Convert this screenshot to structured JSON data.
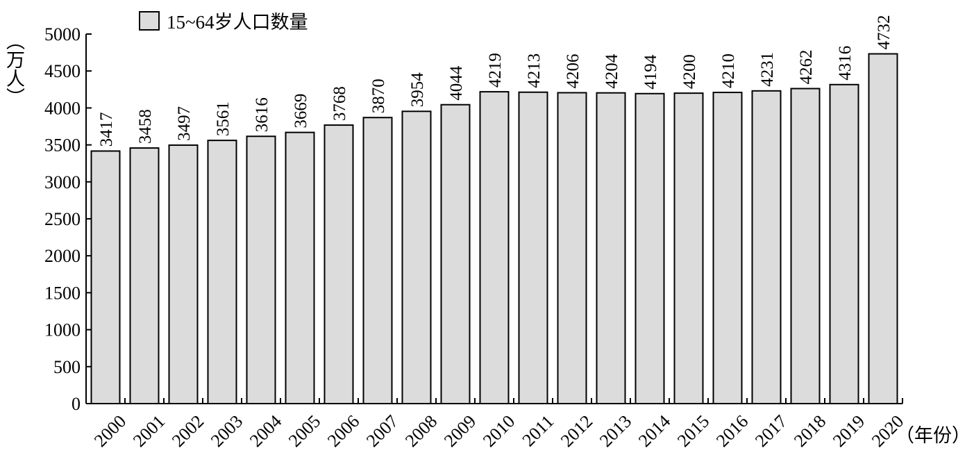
{
  "chart_data": {
    "type": "bar",
    "categories": [
      "2000",
      "2001",
      "2002",
      "2003",
      "2004",
      "2005",
      "2006",
      "2007",
      "2008",
      "2009",
      "2010",
      "2011",
      "2012",
      "2013",
      "2014",
      "2015",
      "2016",
      "2017",
      "2018",
      "2019",
      "2020"
    ],
    "series": [
      {
        "name": "15~64岁人口数量",
        "values": [
          3417,
          3458,
          3497,
          3561,
          3616,
          3669,
          3768,
          3870,
          3954,
          4044,
          4219,
          4213,
          4206,
          4204,
          4194,
          4200,
          4210,
          4231,
          4262,
          4316,
          4732
        ],
        "color": "#dcdcdc"
      }
    ],
    "data_labels": [
      "3417",
      "3458",
      "3497",
      "3561",
      "3616",
      "3669",
      "3768",
      "3870",
      "3954",
      "4044",
      "4219",
      "4213",
      "4206",
      "4204",
      "4194",
      "4200",
      "4210",
      "4231",
      "4262",
      "4316",
      "4732"
    ],
    "ylabel": "（万人）",
    "xlabel": "（年份）",
    "ylim": [
      0,
      5000
    ],
    "yticks": [
      "0",
      "500",
      "1000",
      "1500",
      "2000",
      "2500",
      "3000",
      "3500",
      "4000",
      "4500",
      "5000"
    ],
    "grid": false,
    "legend": {
      "placement": "top-left",
      "entries": [
        "15~64岁人口数量"
      ]
    }
  }
}
